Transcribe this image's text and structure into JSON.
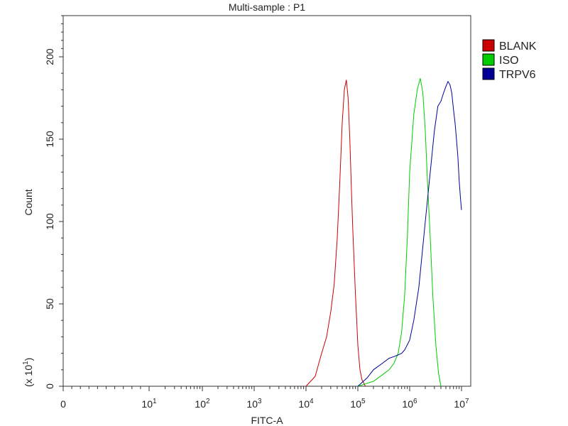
{
  "chart_data": {
    "type": "line",
    "title": "Multi-sample : P1",
    "xlabel": "FITC-A",
    "ylabel": "Count",
    "y_multiplier_label": "(x 10",
    "y_multiplier_exp": "1",
    "y_multiplier_close": ")",
    "x_scale": "log",
    "xlim": [
      0,
      10000000
    ],
    "ylim": [
      0,
      225
    ],
    "x_ticks": [
      {
        "base": "0",
        "exp": "",
        "value": 0
      },
      {
        "base": "10",
        "exp": "1",
        "value": 10
      },
      {
        "base": "10",
        "exp": "2",
        "value": 100
      },
      {
        "base": "10",
        "exp": "3",
        "value": 1000
      },
      {
        "base": "10",
        "exp": "4",
        "value": 10000
      },
      {
        "base": "10",
        "exp": "5",
        "value": 100000
      },
      {
        "base": "10",
        "exp": "6",
        "value": 1000000
      },
      {
        "base": "10",
        "exp": "7",
        "value": 10000000
      }
    ],
    "y_ticks": [
      "0",
      "50",
      "100",
      "150",
      "200"
    ],
    "y_tick_values": [
      0,
      50,
      100,
      150,
      200
    ],
    "legend_position": "right",
    "series": [
      {
        "name": "BLANK",
        "color": "#cc0000",
        "points": [
          [
            10000,
            0
          ],
          [
            15000,
            6
          ],
          [
            20000,
            20
          ],
          [
            25000,
            30
          ],
          [
            30000,
            45
          ],
          [
            35000,
            62
          ],
          [
            40000,
            90
          ],
          [
            45000,
            125
          ],
          [
            50000,
            160
          ],
          [
            55000,
            180
          ],
          [
            60000,
            186
          ],
          [
            65000,
            175
          ],
          [
            70000,
            150
          ],
          [
            75000,
            120
          ],
          [
            80000,
            95
          ],
          [
            85000,
            75
          ],
          [
            90000,
            55
          ],
          [
            95000,
            40
          ],
          [
            100000,
            25
          ],
          [
            110000,
            10
          ],
          [
            120000,
            4
          ],
          [
            140000,
            0
          ]
        ]
      },
      {
        "name": "ISO",
        "color": "#00cc00",
        "points": [
          [
            100000,
            0
          ],
          [
            200000,
            3
          ],
          [
            300000,
            7
          ],
          [
            400000,
            10
          ],
          [
            500000,
            14
          ],
          [
            600000,
            20
          ],
          [
            700000,
            33
          ],
          [
            800000,
            55
          ],
          [
            900000,
            90
          ],
          [
            1000000,
            130
          ],
          [
            1200000,
            165
          ],
          [
            1400000,
            180
          ],
          [
            1600000,
            187
          ],
          [
            1800000,
            178
          ],
          [
            2000000,
            155
          ],
          [
            2200000,
            125
          ],
          [
            2500000,
            90
          ],
          [
            2800000,
            55
          ],
          [
            3200000,
            25
          ],
          [
            3600000,
            8
          ],
          [
            4000000,
            0
          ]
        ]
      },
      {
        "name": "TRPV6",
        "color": "#000099",
        "points": [
          [
            100000,
            0
          ],
          [
            150000,
            5
          ],
          [
            200000,
            10
          ],
          [
            300000,
            14
          ],
          [
            400000,
            17
          ],
          [
            500000,
            18
          ],
          [
            600000,
            19
          ],
          [
            700000,
            20
          ],
          [
            800000,
            22
          ],
          [
            1000000,
            28
          ],
          [
            1200000,
            40
          ],
          [
            1500000,
            60
          ],
          [
            1800000,
            85
          ],
          [
            2000000,
            100
          ],
          [
            2500000,
            130
          ],
          [
            3000000,
            155
          ],
          [
            3500000,
            170
          ],
          [
            4000000,
            173
          ],
          [
            4500000,
            178
          ],
          [
            5000000,
            182
          ],
          [
            5500000,
            185
          ],
          [
            6000000,
            183
          ],
          [
            6500000,
            178
          ],
          [
            7000000,
            168
          ],
          [
            7500000,
            160
          ],
          [
            8000000,
            150
          ],
          [
            8500000,
            140
          ],
          [
            9000000,
            125
          ],
          [
            9500000,
            115
          ],
          [
            10000000,
            107
          ]
        ]
      }
    ]
  }
}
